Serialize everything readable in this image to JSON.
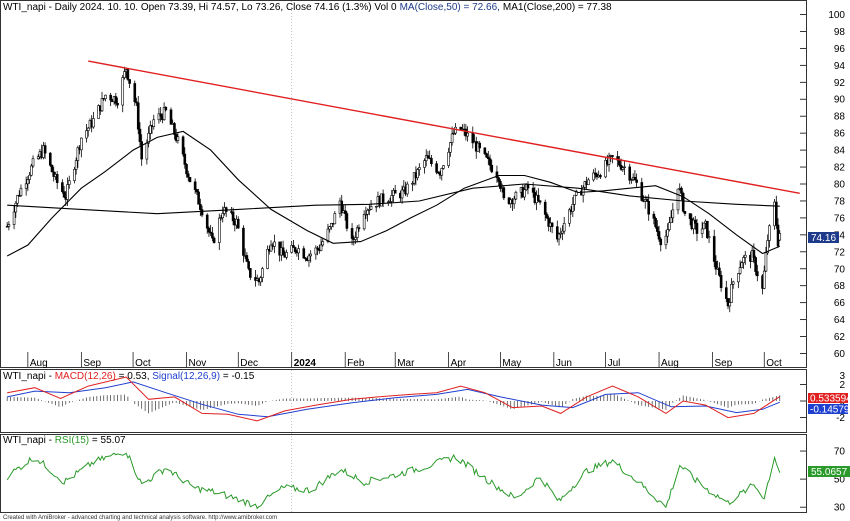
{
  "chart_data": [
    {
      "type": "candlestick",
      "title": "WTI_napi - Daily 2024. 10. 10. Open 73.39, Hi 74.57, Lo 73.26, Close 74.16 (1.3%) Vol 0",
      "last_bar": {
        "date": "2024. 10. 10.",
        "open": 73.39,
        "high": 74.57,
        "low": 73.26,
        "close": 74.16,
        "change": "(1.3%)",
        "vol": "Vol 0"
      },
      "ma_labels": [
        "MA(Close,50) = 72.66,",
        "MA1(Close,200) = 77.38"
      ],
      "price_label": "74.16",
      "ylim": [
        59,
        101
      ],
      "yticks": [
        "60",
        "62",
        "64",
        "66",
        "68",
        "70",
        "72",
        "74",
        "76",
        "78",
        "80",
        "82",
        "84",
        "86",
        "88",
        "90",
        "92",
        "94",
        "96",
        "98",
        "100"
      ],
      "xticks": [
        "Aug",
        "Sep",
        "Oct",
        "Nov",
        "Dec",
        "2024",
        "Feb",
        "Mar",
        "Apr",
        "May",
        "Jun",
        "Jul",
        "Aug",
        "Sep",
        "Oct"
      ],
      "trendline": {
        "from": {
          "date": "2023-09-05",
          "price": 94.5
        },
        "to": {
          "date": "2024-10-10",
          "price": 79.7
        },
        "color": "#e02020"
      },
      "path": [
        [
          "2023-07-20",
          75.0
        ],
        [
          "2023-07-27",
          79.0
        ],
        [
          "2023-08-04",
          82.3
        ],
        [
          "2023-08-10",
          84.0
        ],
        [
          "2023-08-17",
          80.5
        ],
        [
          "2023-08-23",
          78.5
        ],
        [
          "2023-09-01",
          85.5
        ],
        [
          "2023-09-08",
          87.5
        ],
        [
          "2023-09-15",
          90.5
        ],
        [
          "2023-09-22",
          90.0
        ],
        [
          "2023-09-27",
          93.7
        ],
        [
          "2023-10-03",
          89.0
        ],
        [
          "2023-10-06",
          83.0
        ],
        [
          "2023-10-13",
          87.5
        ],
        [
          "2023-10-20",
          88.5
        ],
        [
          "2023-10-27",
          85.0
        ],
        [
          "2023-11-03",
          80.5
        ],
        [
          "2023-11-10",
          77.0
        ],
        [
          "2023-11-16",
          73.0
        ],
        [
          "2023-11-22",
          77.0
        ],
        [
          "2023-11-30",
          75.5
        ],
        [
          "2023-12-07",
          69.5
        ],
        [
          "2023-12-13",
          68.5
        ],
        [
          "2023-12-20",
          73.5
        ],
        [
          "2023-12-27",
          71.5
        ],
        [
          "2024-01-04",
          72.5
        ],
        [
          "2024-01-10",
          71.5
        ],
        [
          "2024-01-17",
          72.5
        ],
        [
          "2024-01-24",
          75.0
        ],
        [
          "2024-01-29",
          78.0
        ],
        [
          "2024-02-05",
          73.0
        ],
        [
          "2024-02-12",
          77.0
        ],
        [
          "2024-02-20",
          78.0
        ],
        [
          "2024-02-27",
          78.5
        ],
        [
          "2024-03-06",
          79.0
        ],
        [
          "2024-03-13",
          81.0
        ],
        [
          "2024-03-19",
          83.0
        ],
        [
          "2024-03-27",
          81.5
        ],
        [
          "2024-04-04",
          86.0
        ],
        [
          "2024-04-08",
          86.5
        ],
        [
          "2024-04-15",
          85.0
        ],
        [
          "2024-04-22",
          83.0
        ],
        [
          "2024-04-30",
          81.0
        ],
        [
          "2024-05-03",
          78.0
        ],
        [
          "2024-05-10",
          78.5
        ],
        [
          "2024-05-17",
          79.5
        ],
        [
          "2024-05-24",
          77.5
        ],
        [
          "2024-06-03",
          73.5
        ],
        [
          "2024-06-07",
          75.5
        ],
        [
          "2024-06-14",
          78.5
        ],
        [
          "2024-06-21",
          80.5
        ],
        [
          "2024-06-28",
          81.5
        ],
        [
          "2024-07-05",
          83.0
        ],
        [
          "2024-07-12",
          82.0
        ],
        [
          "2024-07-19",
          80.0
        ],
        [
          "2024-07-26",
          77.0
        ],
        [
          "2024-08-02",
          73.5
        ],
        [
          "2024-08-06",
          74.0
        ],
        [
          "2024-08-12",
          80.0
        ],
        [
          "2024-08-16",
          76.5
        ],
        [
          "2024-08-23",
          74.5
        ],
        [
          "2024-08-28",
          75.0
        ],
        [
          "2024-09-04",
          69.5
        ],
        [
          "2024-09-10",
          65.8
        ],
        [
          "2024-09-13",
          68.5
        ],
        [
          "2024-09-18",
          71.0
        ],
        [
          "2024-09-24",
          71.5
        ],
        [
          "2024-09-30",
          67.5
        ],
        [
          "2024-10-03",
          73.5
        ],
        [
          "2024-10-07",
          77.5
        ],
        [
          "2024-10-09",
          73.2
        ],
        [
          "2024-10-10",
          74.16
        ]
      ],
      "ma50_path": [
        [
          "2023-07-20",
          71.5
        ],
        [
          "2023-08-01",
          72.8
        ],
        [
          "2023-08-15",
          76.0
        ],
        [
          "2023-09-01",
          79.5
        ],
        [
          "2023-09-15",
          81.5
        ],
        [
          "2023-10-01",
          84.0
        ],
        [
          "2023-10-15",
          85.5
        ],
        [
          "2023-10-30",
          86.2
        ],
        [
          "2023-11-15",
          84.0
        ],
        [
          "2023-12-01",
          80.5
        ],
        [
          "2023-12-20",
          77.0
        ],
        [
          "2024-01-10",
          74.5
        ],
        [
          "2024-01-25",
          73.0
        ],
        [
          "2024-02-10",
          73.2
        ],
        [
          "2024-02-25",
          74.5
        ],
        [
          "2024-03-10",
          76.0
        ],
        [
          "2024-03-25",
          77.5
        ],
        [
          "2024-04-10",
          79.5
        ],
        [
          "2024-04-30",
          81.0
        ],
        [
          "2024-05-15",
          81.0
        ],
        [
          "2024-05-30",
          80.2
        ],
        [
          "2024-06-15",
          79.0
        ],
        [
          "2024-06-30",
          79.2
        ],
        [
          "2024-07-15",
          79.5
        ],
        [
          "2024-07-30",
          79.8
        ],
        [
          "2024-08-15",
          78.5
        ],
        [
          "2024-08-30",
          76.5
        ],
        [
          "2024-09-15",
          74.0
        ],
        [
          "2024-09-30",
          71.8
        ],
        [
          "2024-10-10",
          72.66
        ]
      ],
      "ma200_path": [
        [
          "2023-07-20",
          77.5
        ],
        [
          "2023-09-01",
          77.0
        ],
        [
          "2023-10-15",
          76.5
        ],
        [
          "2023-12-01",
          77.0
        ],
        [
          "2024-01-15",
          77.5
        ],
        [
          "2024-02-15",
          77.6
        ],
        [
          "2024-03-15",
          78.0
        ],
        [
          "2024-04-15",
          79.5
        ],
        [
          "2024-05-15",
          80.0
        ],
        [
          "2024-06-15",
          79.5
        ],
        [
          "2024-07-15",
          78.6
        ],
        [
          "2024-08-15",
          78.0
        ],
        [
          "2024-09-15",
          77.6
        ],
        [
          "2024-10-10",
          77.38
        ]
      ]
    },
    {
      "type": "line",
      "title_parts": [
        "WTI_napi - ",
        "MACD(12,26)",
        " = 0.53, ",
        "Signal(12,26,9)",
        " = -0.15"
      ],
      "ylim": [
        -3.5,
        3.5
      ],
      "yticks": [
        "-2",
        "0",
        "2"
      ],
      "extra_label": "3",
      "value_labels": [
        "0.533594",
        "-0.145791"
      ],
      "series": [
        {
          "name": "MACD(12,26)",
          "color": "#e02020"
        },
        {
          "name": "Signal(12,26,9)",
          "color": "#2040d0"
        }
      ],
      "macd_path": [
        [
          "2023-07-20",
          1.0
        ],
        [
          "2023-08-05",
          1.6
        ],
        [
          "2023-08-20",
          0.3
        ],
        [
          "2023-09-05",
          1.8
        ],
        [
          "2023-09-27",
          2.9
        ],
        [
          "2023-10-10",
          0.2
        ],
        [
          "2023-10-25",
          0.5
        ],
        [
          "2023-11-10",
          -1.5
        ],
        [
          "2023-11-25",
          -1.6
        ],
        [
          "2023-12-12",
          -2.4
        ],
        [
          "2023-12-28",
          -1.2
        ],
        [
          "2024-01-15",
          -0.5
        ],
        [
          "2024-02-05",
          0.2
        ],
        [
          "2024-02-20",
          0.5
        ],
        [
          "2024-03-10",
          0.8
        ],
        [
          "2024-03-25",
          1.0
        ],
        [
          "2024-04-08",
          1.8
        ],
        [
          "2024-04-22",
          1.0
        ],
        [
          "2024-05-08",
          -0.8
        ],
        [
          "2024-05-25",
          -0.6
        ],
        [
          "2024-06-05",
          -1.5
        ],
        [
          "2024-06-20",
          0.5
        ],
        [
          "2024-07-05",
          1.8
        ],
        [
          "2024-07-20",
          0.5
        ],
        [
          "2024-08-05",
          -1.5
        ],
        [
          "2024-08-15",
          0.0
        ],
        [
          "2024-08-28",
          -0.5
        ],
        [
          "2024-09-10",
          -2.0
        ],
        [
          "2024-09-25",
          -1.5
        ],
        [
          "2024-10-10",
          0.53
        ]
      ],
      "signal_path": [
        [
          "2023-07-20",
          0.5
        ],
        [
          "2023-08-05",
          1.2
        ],
        [
          "2023-08-25",
          1.0
        ],
        [
          "2023-09-15",
          1.6
        ],
        [
          "2023-10-01",
          2.3
        ],
        [
          "2023-10-20",
          1.0
        ],
        [
          "2023-11-10",
          -0.4
        ],
        [
          "2023-12-01",
          -1.6
        ],
        [
          "2023-12-18",
          -1.9
        ],
        [
          "2024-01-10",
          -1.0
        ],
        [
          "2024-02-05",
          -0.2
        ],
        [
          "2024-03-01",
          0.4
        ],
        [
          "2024-03-25",
          0.8
        ],
        [
          "2024-04-12",
          1.4
        ],
        [
          "2024-05-01",
          0.5
        ],
        [
          "2024-05-25",
          -0.5
        ],
        [
          "2024-06-12",
          -0.8
        ],
        [
          "2024-07-01",
          0.8
        ],
        [
          "2024-07-20",
          1.0
        ],
        [
          "2024-08-08",
          -0.7
        ],
        [
          "2024-08-28",
          -0.6
        ],
        [
          "2024-09-15",
          -1.4
        ],
        [
          "2024-09-30",
          -1.0
        ],
        [
          "2024-10-10",
          -0.15
        ]
      ]
    },
    {
      "type": "line",
      "title_parts": [
        "WTI_napi - ",
        "RSI(15)",
        " = 55.07"
      ],
      "ylim": [
        28,
        80
      ],
      "yticks": [
        "30",
        "50",
        "70"
      ],
      "value_label": "55.0657",
      "series": [
        {
          "name": "RSI(15)",
          "color": "#2a9a2a"
        }
      ],
      "rsi_path": [
        [
          "2023-07-20",
          52
        ],
        [
          "2023-08-05",
          66
        ],
        [
          "2023-08-22",
          48
        ],
        [
          "2023-09-08",
          62
        ],
        [
          "2023-09-27",
          70
        ],
        [
          "2023-10-06",
          46
        ],
        [
          "2023-10-20",
          58
        ],
        [
          "2023-11-05",
          44
        ],
        [
          "2023-11-20",
          40
        ],
        [
          "2023-12-12",
          31
        ],
        [
          "2023-12-27",
          44
        ],
        [
          "2024-01-12",
          42
        ],
        [
          "2024-01-29",
          57
        ],
        [
          "2024-02-12",
          48
        ],
        [
          "2024-03-01",
          53
        ],
        [
          "2024-03-19",
          59
        ],
        [
          "2024-04-05",
          66
        ],
        [
          "2024-04-25",
          48
        ],
        [
          "2024-05-10",
          36
        ],
        [
          "2024-05-24",
          52
        ],
        [
          "2024-06-04",
          34
        ],
        [
          "2024-06-20",
          56
        ],
        [
          "2024-07-05",
          63
        ],
        [
          "2024-07-20",
          48
        ],
        [
          "2024-08-05",
          30
        ],
        [
          "2024-08-13",
          60
        ],
        [
          "2024-08-25",
          46
        ],
        [
          "2024-09-10",
          33
        ],
        [
          "2024-09-25",
          46
        ],
        [
          "2024-10-01",
          37
        ],
        [
          "2024-10-07",
          66
        ],
        [
          "2024-10-10",
          55.07
        ]
      ]
    }
  ],
  "footer": "Created with AmiBroker - advanced charting and technical analysis software. http://www.amibroker.com"
}
